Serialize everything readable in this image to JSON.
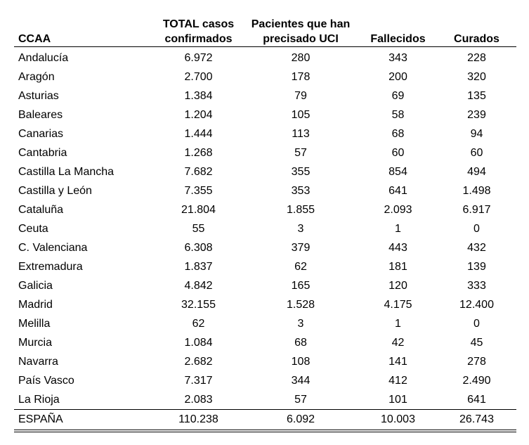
{
  "headers": [
    "CCAA",
    [
      "TOTAL casos",
      "confirmados"
    ],
    [
      "Pacientes que han",
      "precisado UCI"
    ],
    "Fallecidos",
    "Curados"
  ],
  "rows": [
    [
      "Andalucía",
      "6.972",
      "280",
      "343",
      "228"
    ],
    [
      "Aragón",
      "2.700",
      "178",
      "200",
      "320"
    ],
    [
      "Asturias",
      "1.384",
      "79",
      "69",
      "135"
    ],
    [
      "Baleares",
      "1.204",
      "105",
      "58",
      "239"
    ],
    [
      "Canarias",
      "1.444",
      "113",
      "68",
      "94"
    ],
    [
      "Cantabria",
      "1.268",
      "57",
      "60",
      "60"
    ],
    [
      "Castilla La Mancha",
      "7.682",
      "355",
      "854",
      "494"
    ],
    [
      "Castilla y León",
      "7.355",
      "353",
      "641",
      "1.498"
    ],
    [
      "Cataluña",
      "21.804",
      "1.855",
      "2.093",
      "6.917"
    ],
    [
      "Ceuta",
      "55",
      "3",
      "1",
      "0"
    ],
    [
      "C. Valenciana",
      "6.308",
      "379",
      "443",
      "432"
    ],
    [
      "Extremadura",
      "1.837",
      "62",
      "181",
      "139"
    ],
    [
      "Galicia",
      "4.842",
      "165",
      "120",
      "333"
    ],
    [
      "Madrid",
      "32.155",
      "1.528",
      "4.175",
      "12.400"
    ],
    [
      "Melilla",
      "62",
      "3",
      "1",
      "0"
    ],
    [
      "Murcia",
      "1.084",
      "68",
      "42",
      "45"
    ],
    [
      "Navarra",
      "2.682",
      "108",
      "141",
      "278"
    ],
    [
      "País Vasco",
      "7.317",
      "344",
      "412",
      "2.490"
    ],
    [
      "La Rioja",
      "2.083",
      "57",
      "101",
      "641"
    ]
  ],
  "total": [
    "ESPAÑA",
    "110.238",
    "6.092",
    "10.003",
    "26.743"
  ]
}
